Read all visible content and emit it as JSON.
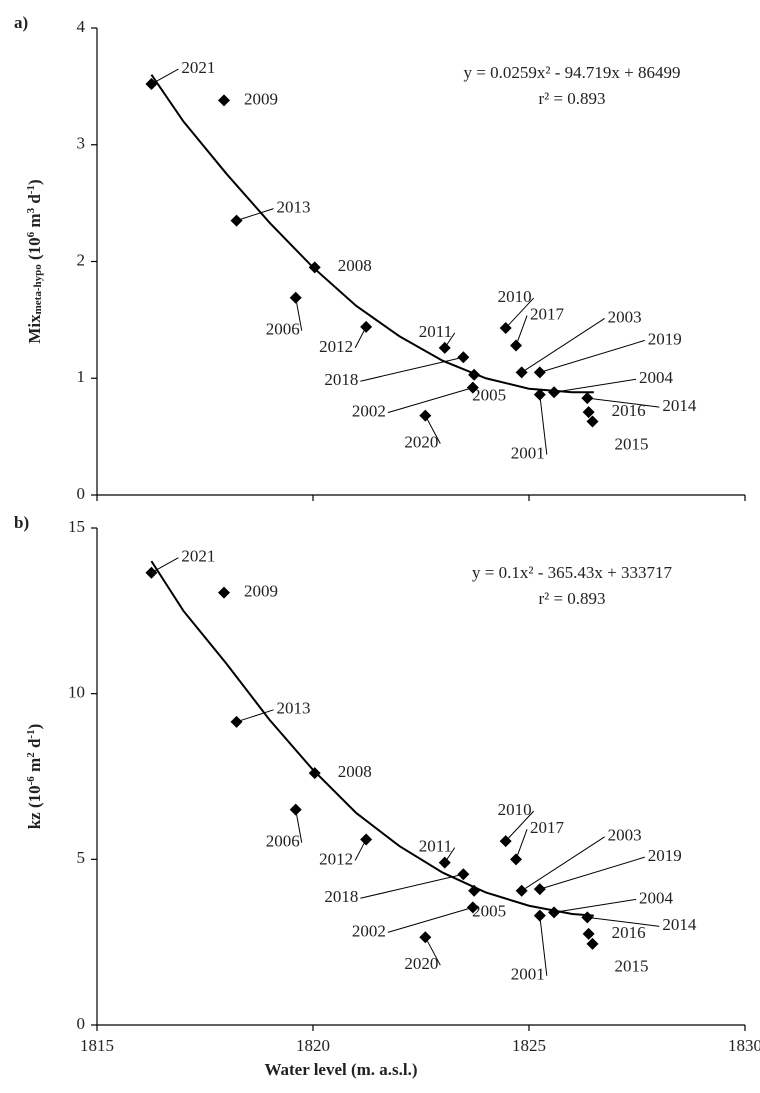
{
  "chart_data": [
    {
      "type": "scatter",
      "panel_label": "a)",
      "ylabel_parts": [
        "Mix",
        "meta-hypo",
        " (10",
        "6",
        " m",
        "3",
        " d",
        "-1",
        ")"
      ],
      "equation": "y = 0.0259x² - 94.719x + 86499",
      "r2": "r² = 0.893",
      "xlim": [
        1815,
        1830
      ],
      "xticks": [
        1815,
        1820,
        1825,
        1830
      ],
      "ylim": [
        0,
        4
      ],
      "yticks": [
        0,
        1,
        2,
        3,
        4
      ],
      "color": "#000000",
      "point_labels": [
        "2021",
        "2009",
        "2013",
        "2008",
        "2006",
        "2012",
        "2011",
        "2018",
        "2005",
        "2002",
        "2020",
        "2010",
        "2017",
        "2003",
        "2019",
        "2001",
        "2004",
        "2014",
        "2016",
        "2015"
      ],
      "x": [
        1816.26,
        1817.94,
        1818.23,
        1820.04,
        1819.6,
        1821.23,
        1823.05,
        1823.48,
        1823.73,
        1823.7,
        1822.6,
        1824.46,
        1824.7,
        1824.83,
        1825.25,
        1825.25,
        1825.58,
        1826.35,
        1826.38,
        1826.47
      ],
      "values": [
        3.52,
        3.38,
        2.35,
        1.95,
        1.69,
        1.44,
        1.26,
        1.18,
        1.03,
        0.92,
        0.68,
        1.43,
        1.28,
        1.05,
        1.05,
        0.86,
        0.88,
        0.83,
        0.71,
        0.63
      ],
      "trendline": {
        "x": [
          1816.26,
          1817,
          1818,
          1819,
          1820,
          1821,
          1822,
          1823,
          1824,
          1825,
          1826,
          1826.5
        ],
        "values": [
          3.6,
          3.2,
          2.75,
          2.33,
          1.95,
          1.62,
          1.36,
          1.15,
          1.0,
          0.91,
          0.88,
          0.88
        ]
      }
    },
    {
      "type": "scatter",
      "panel_label": "b)",
      "ylabel_parts": [
        "kz",
        "",
        " (10",
        "-6",
        " m",
        "2",
        " d",
        "-1",
        ")"
      ],
      "equation": "y = 0.1x² - 365.43x + 333717",
      "r2": "r² = 0.893",
      "xlabel": "Water level (m. a.s.l.)",
      "xlim": [
        1815,
        1830
      ],
      "xticks": [
        1815,
        1820,
        1825,
        1830
      ],
      "ylim": [
        0,
        15
      ],
      "yticks": [
        0,
        5,
        10,
        15
      ],
      "color": "#000000",
      "point_labels": [
        "2021",
        "2009",
        "2013",
        "2008",
        "2006",
        "2012",
        "2011",
        "2018",
        "2005",
        "2002",
        "2020",
        "2010",
        "2017",
        "2003",
        "2019",
        "2001",
        "2004",
        "2014",
        "2016",
        "2015"
      ],
      "x": [
        1816.26,
        1817.94,
        1818.23,
        1820.04,
        1819.6,
        1821.23,
        1823.05,
        1823.48,
        1823.73,
        1823.7,
        1822.6,
        1824.46,
        1824.7,
        1824.83,
        1825.25,
        1825.25,
        1825.58,
        1826.35,
        1826.38,
        1826.47
      ],
      "values": [
        13.65,
        13.05,
        9.15,
        7.6,
        6.5,
        5.6,
        4.9,
        4.55,
        4.05,
        3.55,
        2.65,
        5.55,
        5.0,
        4.05,
        4.1,
        3.3,
        3.4,
        3.25,
        2.75,
        2.45
      ],
      "trendline": {
        "x": [
          1816.26,
          1817,
          1818,
          1819,
          1820,
          1821,
          1822,
          1823,
          1824,
          1825,
          1826,
          1826.5
        ],
        "values": [
          14.0,
          12.5,
          10.9,
          9.2,
          7.7,
          6.4,
          5.4,
          4.6,
          4.0,
          3.6,
          3.35,
          3.3
        ]
      }
    }
  ]
}
